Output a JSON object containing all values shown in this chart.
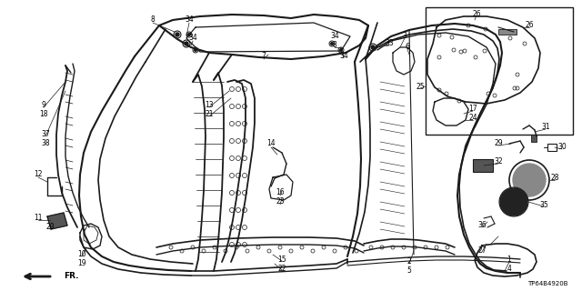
{
  "part_number": "TP64B4920B",
  "bg_color": "#ffffff",
  "line_color": "#1a1a1a",
  "text_color": "#000000",
  "figsize": [
    6.4,
    3.2
  ],
  "dpi": 100
}
